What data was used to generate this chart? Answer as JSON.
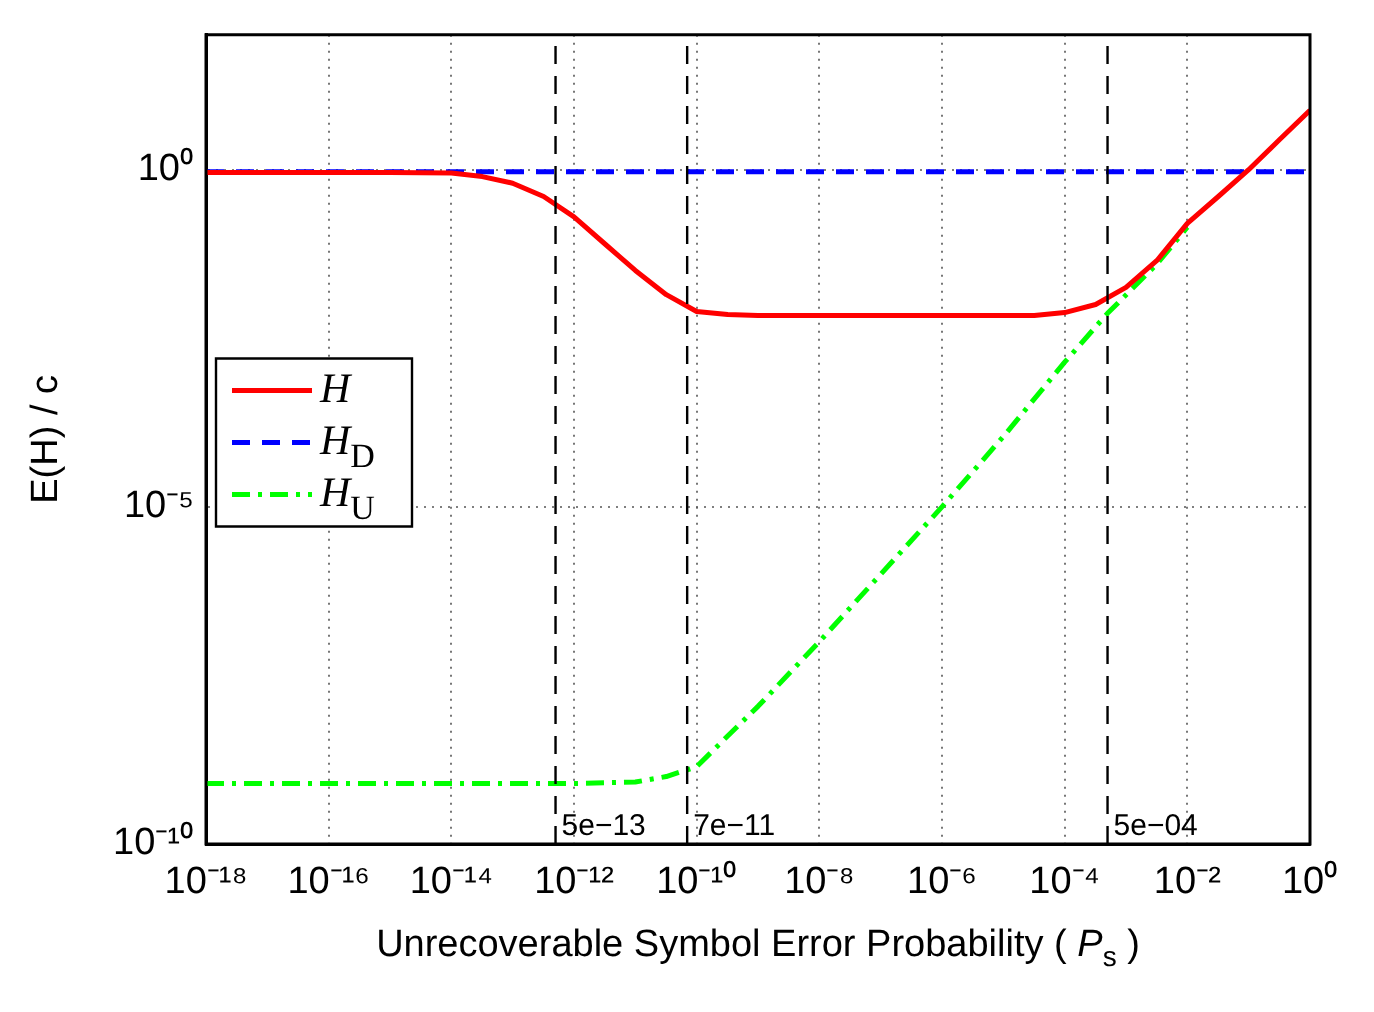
{
  "chart_data": {
    "type": "line",
    "xlabel": "Unrecoverable Symbol Error Probability ( P$_{s}$ )",
    "ylabel": "E(H) / c",
    "log": "xy",
    "grid": true,
    "legend": "left",
    "marker": "none",
    "xlim": [
      1e-18,
      1
    ],
    "ylim": [
      1e-10,
      100
    ],
    "xticks": [
      {
        "value": 1e-18,
        "label": "10⁻¹⁸"
      },
      {
        "value": 1e-16,
        "label": "10⁻¹⁶"
      },
      {
        "value": 1e-14,
        "label": "10⁻¹⁴"
      },
      {
        "value": 1e-12,
        "label": "10⁻¹²"
      },
      {
        "value": 1e-10,
        "label": "10⁻¹⁰"
      },
      {
        "value": 1e-08,
        "label": "10⁻⁸"
      },
      {
        "value": 1e-06,
        "label": "10⁻⁶"
      },
      {
        "value": 0.0001,
        "label": "10⁻⁴"
      },
      {
        "value": 0.01,
        "label": "10⁻²"
      },
      {
        "value": 1,
        "label": "10⁰"
      }
    ],
    "yticks": [
      {
        "value": 1e-10,
        "label": "10⁻¹⁰"
      },
      {
        "value": 1e-05,
        "label": "10⁻⁵"
      },
      {
        "value": 1,
        "label": "10⁰"
      }
    ],
    "series": [
      {
        "name": "H",
        "color": "#ff0000",
        "line_style": "solid",
        "x": [
          1e-18,
          1e-15,
          1e-14,
          3.2e-14,
          1e-13,
          3.2e-13,
          1e-12,
          3.2e-12,
          1e-11,
          3.2e-11,
          1e-10,
          3.2e-10,
          1e-09,
          3.2e-05,
          0.0001,
          0.00032,
          0.001,
          0.0032,
          0.01,
          0.032,
          0.1,
          0.32,
          1
        ],
        "values": [
          0.91,
          0.91,
          0.89,
          0.79,
          0.63,
          0.4,
          0.2,
          0.079,
          0.032,
          0.014,
          0.0079,
          0.0071,
          0.0069,
          0.0069,
          0.0076,
          0.01,
          0.018,
          0.045,
          0.16,
          0.4,
          1.0,
          2.8,
          7.6
        ]
      },
      {
        "name": "H$_{D}$",
        "color": "#0000ff",
        "line_style": "dashed",
        "x": [
          1e-18,
          1
        ],
        "values": [
          0.93,
          0.93
        ]
      },
      {
        "name": "H$_{U}$",
        "color": "#00ff00",
        "line_style": "dashdot",
        "x": [
          1e-18,
          1e-12,
          1e-11,
          3.2e-11,
          1e-10,
          3.2e-10,
          1e-09,
          1e-08,
          1e-07,
          1e-06,
          1e-05,
          0.0001,
          0.0005,
          0.0032,
          0.01
        ],
        "values": [
          7.9e-10,
          7.9e-10,
          8.3e-10,
          1e-09,
          1.4e-09,
          4e-09,
          1.1e-08,
          1e-07,
          1e-06,
          1e-05,
          0.00011,
          0.0014,
          0.0074,
          0.04,
          0.14
        ]
      }
    ],
    "ref_lines": [
      {
        "axis": "x",
        "value": 5e-13,
        "label": "5e−13",
        "color": "#000000",
        "line_style": "dashed"
      },
      {
        "axis": "x",
        "value": 7e-11,
        "label": "7e−11",
        "color": "#000000",
        "line_style": "dashed"
      },
      {
        "axis": "x",
        "value": 0.0005,
        "label": "5e−04",
        "color": "#000000",
        "line_style": "dashed"
      }
    ]
  }
}
